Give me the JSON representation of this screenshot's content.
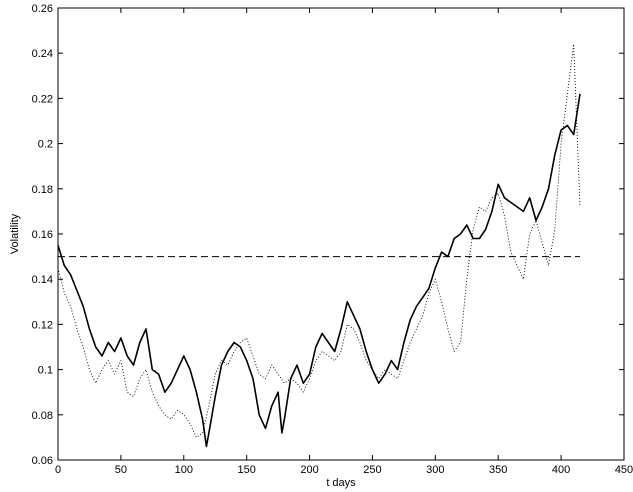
{
  "chart_data": {
    "type": "line",
    "title": "",
    "xlabel": "t days",
    "ylabel": "Volatility",
    "xlim": [
      0,
      450
    ],
    "ylim": [
      0.06,
      0.26
    ],
    "xticks": [
      0,
      50,
      100,
      150,
      200,
      250,
      300,
      350,
      400,
      450
    ],
    "xtick_labels": [
      "0",
      "50",
      "100",
      "150",
      "200",
      "250",
      "300",
      "350",
      "400",
      "450"
    ],
    "yticks": [
      0.06,
      0.08,
      0.1,
      0.12,
      0.14,
      0.16,
      0.18,
      0.2,
      0.22,
      0.24,
      0.26
    ],
    "ytick_labels": [
      "0.06",
      "0.08",
      "0.1",
      "0.12",
      "0.14",
      "0.16",
      "0.18",
      "0.2",
      "0.22",
      "0.24",
      "0.26"
    ],
    "grid": false,
    "legend": null,
    "series": [
      {
        "style": "solid",
        "color": "#000000",
        "x": [
          0,
          5,
          10,
          15,
          20,
          25,
          30,
          35,
          40,
          45,
          50,
          55,
          60,
          65,
          70,
          75,
          80,
          85,
          90,
          95,
          100,
          105,
          110,
          115,
          118,
          120,
          125,
          130,
          135,
          140,
          145,
          150,
          155,
          160,
          165,
          170,
          175,
          178,
          180,
          185,
          190,
          195,
          200,
          205,
          210,
          215,
          220,
          225,
          230,
          235,
          240,
          245,
          250,
          255,
          260,
          265,
          270,
          275,
          280,
          285,
          290,
          295,
          300,
          305,
          310,
          315,
          320,
          325,
          330,
          335,
          340,
          345,
          350,
          355,
          360,
          365,
          370,
          375,
          380,
          385,
          390,
          395,
          400,
          405,
          410,
          415
        ],
        "y": [
          0.155,
          0.146,
          0.142,
          0.135,
          0.128,
          0.118,
          0.11,
          0.106,
          0.112,
          0.108,
          0.114,
          0.106,
          0.102,
          0.112,
          0.118,
          0.1,
          0.098,
          0.09,
          0.094,
          0.1,
          0.106,
          0.1,
          0.09,
          0.078,
          0.066,
          0.072,
          0.088,
          0.102,
          0.108,
          0.112,
          0.11,
          0.104,
          0.096,
          0.08,
          0.074,
          0.084,
          0.09,
          0.072,
          0.078,
          0.096,
          0.102,
          0.094,
          0.098,
          0.11,
          0.116,
          0.112,
          0.108,
          0.118,
          0.13,
          0.124,
          0.118,
          0.108,
          0.1,
          0.094,
          0.098,
          0.104,
          0.1,
          0.112,
          0.122,
          0.128,
          0.132,
          0.136,
          0.145,
          0.152,
          0.15,
          0.158,
          0.16,
          0.164,
          0.158,
          0.158,
          0.162,
          0.17,
          0.182,
          0.176,
          0.174,
          0.172,
          0.17,
          0.176,
          0.166,
          0.172,
          0.18,
          0.195,
          0.206,
          0.208,
          0.204,
          0.222
        ]
      },
      {
        "style": "dotted",
        "color": "#000000",
        "x": [
          0,
          5,
          10,
          15,
          20,
          25,
          30,
          35,
          40,
          45,
          50,
          55,
          60,
          65,
          70,
          75,
          80,
          85,
          90,
          95,
          100,
          105,
          110,
          115,
          120,
          125,
          130,
          135,
          140,
          145,
          150,
          155,
          160,
          165,
          170,
          175,
          180,
          185,
          190,
          195,
          200,
          205,
          210,
          215,
          220,
          225,
          230,
          235,
          240,
          245,
          250,
          255,
          260,
          265,
          270,
          275,
          280,
          285,
          290,
          295,
          300,
          305,
          310,
          315,
          320,
          325,
          330,
          335,
          340,
          345,
          350,
          355,
          360,
          365,
          370,
          375,
          380,
          385,
          390,
          395,
          400,
          405,
          410,
          415
        ],
        "y": [
          0.145,
          0.134,
          0.128,
          0.118,
          0.11,
          0.1,
          0.094,
          0.1,
          0.104,
          0.098,
          0.104,
          0.09,
          0.088,
          0.096,
          0.1,
          0.09,
          0.084,
          0.08,
          0.078,
          0.082,
          0.08,
          0.076,
          0.07,
          0.072,
          0.084,
          0.098,
          0.104,
          0.102,
          0.108,
          0.112,
          0.114,
          0.106,
          0.098,
          0.096,
          0.102,
          0.098,
          0.094,
          0.096,
          0.094,
          0.09,
          0.096,
          0.104,
          0.108,
          0.106,
          0.104,
          0.108,
          0.12,
          0.118,
          0.112,
          0.104,
          0.1,
          0.096,
          0.1,
          0.098,
          0.096,
          0.104,
          0.112,
          0.118,
          0.124,
          0.134,
          0.14,
          0.13,
          0.118,
          0.108,
          0.112,
          0.14,
          0.162,
          0.172,
          0.17,
          0.176,
          0.178,
          0.168,
          0.152,
          0.146,
          0.14,
          0.16,
          0.166,
          0.156,
          0.146,
          0.162,
          0.2,
          0.222,
          0.244,
          0.172
        ]
      }
    ],
    "reference_line": {
      "style": "dashed",
      "y": 0.15,
      "x_range": [
        0,
        415
      ]
    }
  }
}
